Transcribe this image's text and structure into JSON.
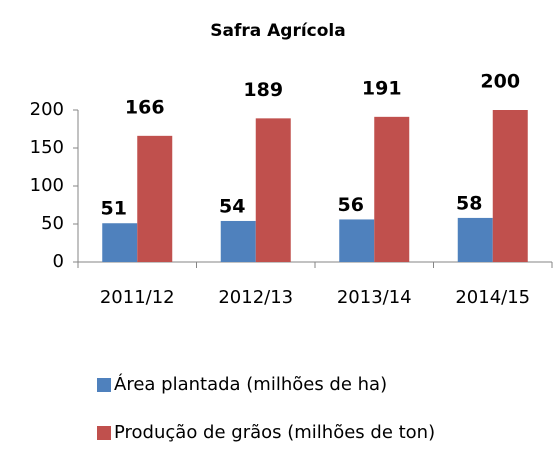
{
  "chart_data": {
    "type": "bar",
    "title": "Safra Agrícola",
    "categories": [
      "2011/12",
      "2012/13",
      "2013/14",
      "2014/15"
    ],
    "series": [
      {
        "name": "Área plantada (milhões de ha)",
        "color": "#4f81bd",
        "values": [
          51,
          54,
          56,
          58
        ]
      },
      {
        "name": "Produção de grãos (milhões de ton)",
        "color": "#c0504d",
        "values": [
          166,
          189,
          191,
          200
        ]
      }
    ],
    "ylim": [
      0,
      200
    ],
    "yticks": [
      0,
      50,
      100,
      150,
      200
    ],
    "grid": false
  }
}
